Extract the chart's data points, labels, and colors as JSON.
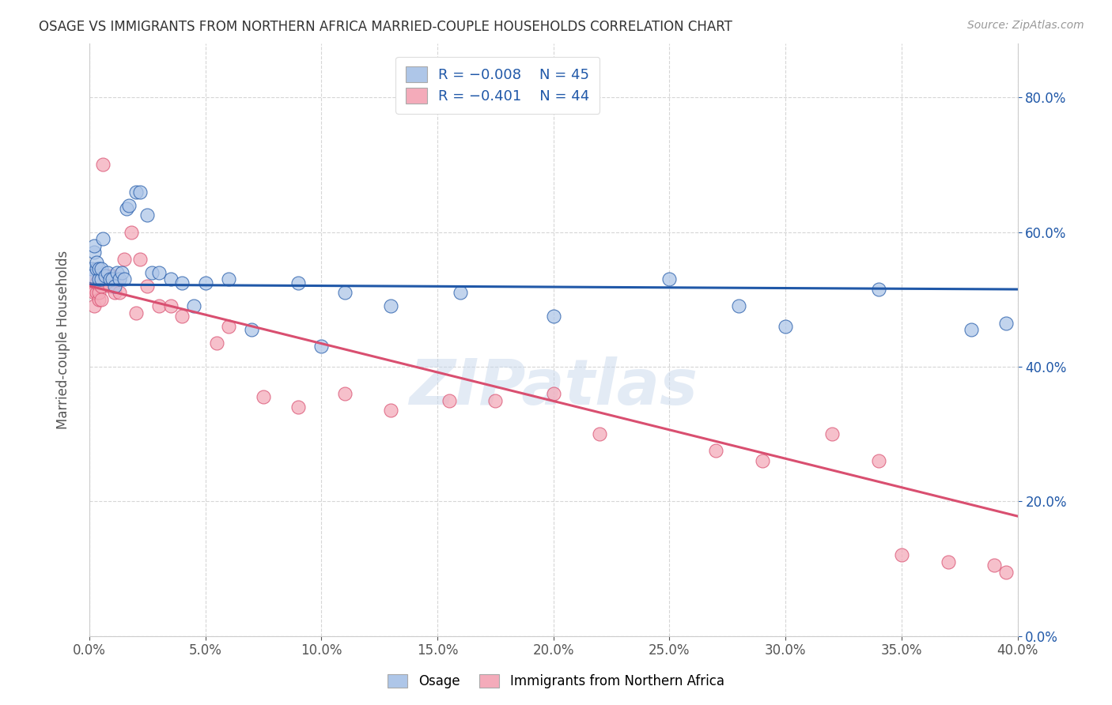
{
  "title": "OSAGE VS IMMIGRANTS FROM NORTHERN AFRICA MARRIED-COUPLE HOUSEHOLDS CORRELATION CHART",
  "source": "Source: ZipAtlas.com",
  "ylabel_label": "Married-couple Households",
  "xlim": [
    0.0,
    0.4
  ],
  "ylim": [
    0.0,
    0.88
  ],
  "color_blue": "#AEC6E8",
  "color_pink": "#F4ABBA",
  "line_blue": "#2058A8",
  "line_pink": "#D94F70",
  "watermark": "ZIPatlas",
  "osage_x": [
    0.001,
    0.001,
    0.002,
    0.002,
    0.003,
    0.003,
    0.004,
    0.004,
    0.005,
    0.005,
    0.006,
    0.007,
    0.008,
    0.009,
    0.01,
    0.011,
    0.012,
    0.013,
    0.014,
    0.015,
    0.016,
    0.017,
    0.02,
    0.022,
    0.025,
    0.027,
    0.03,
    0.035,
    0.04,
    0.045,
    0.05,
    0.06,
    0.07,
    0.09,
    0.1,
    0.11,
    0.13,
    0.16,
    0.2,
    0.25,
    0.28,
    0.3,
    0.34,
    0.38,
    0.395
  ],
  "osage_y": [
    0.545,
    0.535,
    0.57,
    0.58,
    0.545,
    0.555,
    0.53,
    0.545,
    0.53,
    0.545,
    0.59,
    0.535,
    0.54,
    0.53,
    0.53,
    0.52,
    0.54,
    0.53,
    0.54,
    0.53,
    0.635,
    0.64,
    0.66,
    0.66,
    0.625,
    0.54,
    0.54,
    0.53,
    0.525,
    0.49,
    0.525,
    0.53,
    0.455,
    0.525,
    0.43,
    0.51,
    0.49,
    0.51,
    0.475,
    0.53,
    0.49,
    0.46,
    0.515,
    0.455,
    0.465
  ],
  "africa_x": [
    0.001,
    0.001,
    0.002,
    0.002,
    0.003,
    0.003,
    0.004,
    0.004,
    0.005,
    0.005,
    0.006,
    0.007,
    0.008,
    0.009,
    0.01,
    0.011,
    0.012,
    0.013,
    0.015,
    0.018,
    0.02,
    0.022,
    0.025,
    0.03,
    0.035,
    0.04,
    0.055,
    0.06,
    0.075,
    0.09,
    0.11,
    0.13,
    0.155,
    0.175,
    0.2,
    0.22,
    0.27,
    0.29,
    0.32,
    0.34,
    0.35,
    0.37,
    0.39,
    0.395
  ],
  "africa_y": [
    0.515,
    0.53,
    0.49,
    0.51,
    0.51,
    0.525,
    0.5,
    0.51,
    0.52,
    0.5,
    0.7,
    0.53,
    0.535,
    0.52,
    0.535,
    0.51,
    0.53,
    0.51,
    0.56,
    0.6,
    0.48,
    0.56,
    0.52,
    0.49,
    0.49,
    0.475,
    0.435,
    0.46,
    0.355,
    0.34,
    0.36,
    0.335,
    0.35,
    0.35,
    0.36,
    0.3,
    0.275,
    0.26,
    0.3,
    0.26,
    0.12,
    0.11,
    0.105,
    0.095
  ],
  "blue_line_y0": 0.522,
  "blue_line_y1": 0.515,
  "pink_line_y0": 0.52,
  "pink_line_y1": 0.178
}
